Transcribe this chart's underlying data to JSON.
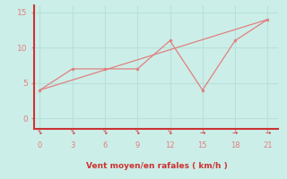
{
  "line1_x": [
    0,
    21
  ],
  "line1_y": [
    4,
    14
  ],
  "line2_x": [
    0,
    3,
    6,
    9,
    12,
    15,
    18,
    21
  ],
  "line2_y": [
    4,
    7,
    7,
    7,
    11,
    4,
    11,
    14
  ],
  "line_color": "#e08080",
  "marker_color": "#e08080",
  "bg_color": "#cceee8",
  "grid_color": "#b8e0da",
  "axis_line_color": "#cc3333",
  "tick_color": "#e08080",
  "xlabel": "Vent moyen/en rafales ( km/h )",
  "xlabel_color": "#cc3333",
  "xlim": [
    -0.5,
    22
  ],
  "ylim": [
    -1.5,
    16
  ],
  "xticks": [
    0,
    3,
    6,
    9,
    12,
    15,
    18,
    21
  ],
  "yticks": [
    0,
    5,
    10,
    15
  ],
  "arrow_symbols": [
    "↘",
    "↘",
    "↘",
    "↘",
    "↘",
    "→",
    "→",
    "→"
  ]
}
